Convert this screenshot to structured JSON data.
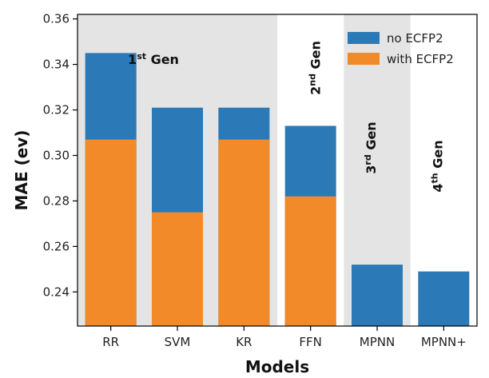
{
  "chart_data": {
    "type": "bar",
    "xlabel": "Models",
    "ylabel": "MAE (ev)",
    "ylim": [
      0.225,
      0.362
    ],
    "yticks": [
      0.24,
      0.26,
      0.28,
      0.3,
      0.32,
      0.34,
      0.36
    ],
    "ytick_labels": [
      "0.24",
      "0.26",
      "0.28",
      "0.30",
      "0.32",
      "0.34",
      "0.36"
    ],
    "categories": [
      "RR",
      "SVM",
      "KR",
      "FFN",
      "MPNN",
      "MPNN+"
    ],
    "series": [
      {
        "name": "no ECFP2",
        "color": "#2b79b6",
        "values": [
          0.345,
          0.321,
          0.321,
          0.313,
          0.252,
          0.249
        ]
      },
      {
        "name": "with ECFP2",
        "color": "#f28a2a",
        "values": [
          0.307,
          0.275,
          0.307,
          0.282,
          null,
          null
        ]
      }
    ],
    "legend_position": "top-right",
    "generations": [
      {
        "base": "1",
        "sup": "st",
        "rest": " Gen",
        "categories": [
          "RR",
          "SVM",
          "KR"
        ],
        "shaded": true
      },
      {
        "base": "2",
        "sup": "nd",
        "rest": " Gen",
        "categories": [
          "FFN"
        ],
        "shaded": false
      },
      {
        "base": "3",
        "sup": "rd",
        "rest": " Gen",
        "categories": [
          "MPNN"
        ],
        "shaded": true
      },
      {
        "base": "4",
        "sup": "th",
        "rest": " Gen",
        "categories": [
          "MPNN+"
        ],
        "shaded": false
      }
    ],
    "shade_color": "#e4e4e4"
  }
}
